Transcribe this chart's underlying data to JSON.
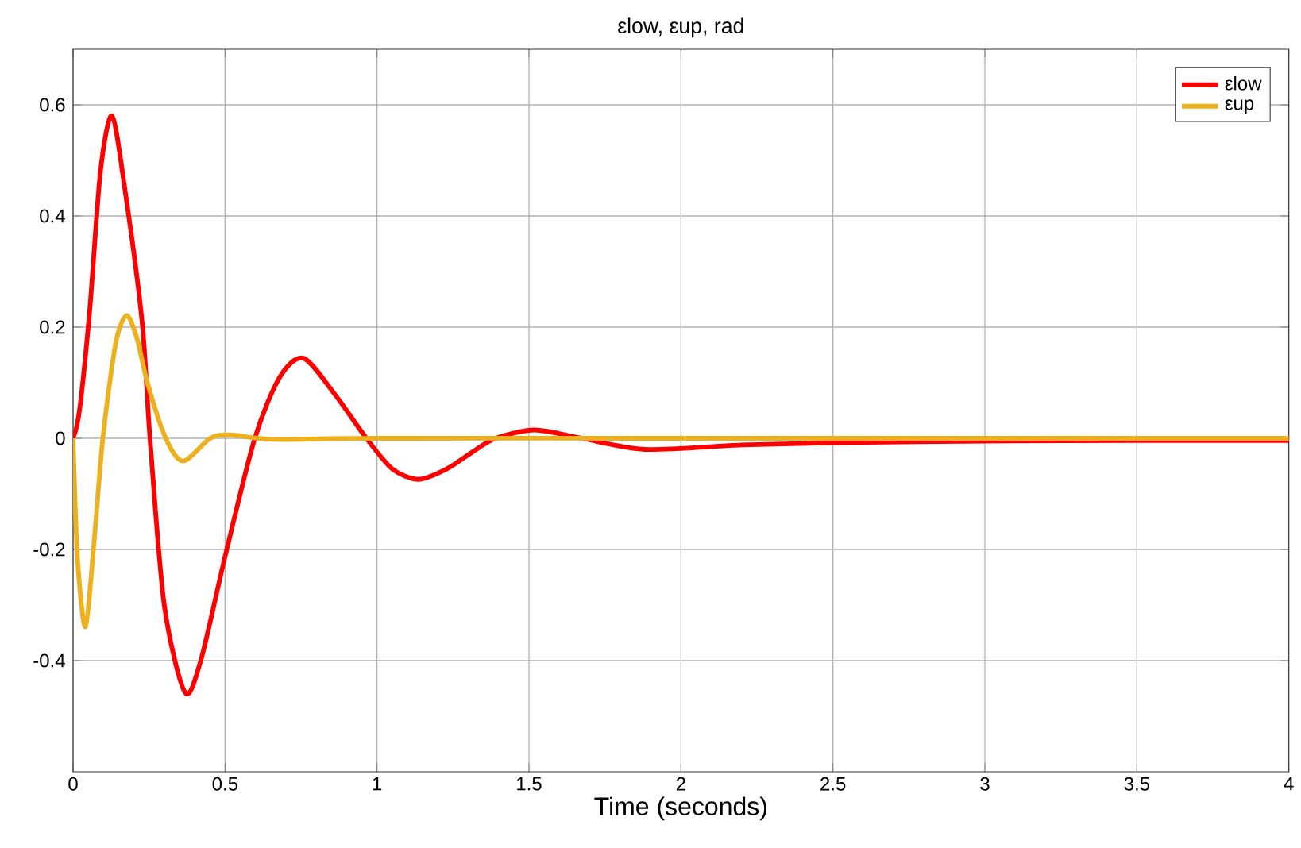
{
  "chart_data": {
    "type": "line",
    "title": "εlow, εup, rad",
    "xlabel": "Time (seconds)",
    "xlim": [
      0,
      4
    ],
    "ylim": [
      -0.6,
      0.7
    ],
    "xticks": [
      0,
      0.5,
      1,
      1.5,
      2,
      2.5,
      3,
      3.5,
      4
    ],
    "yticks": [
      -0.4,
      -0.2,
      0,
      0.2,
      0.4,
      0.6
    ],
    "grid": true,
    "legend": "top right",
    "line_style": "solid",
    "marker": "none",
    "series": [
      {
        "name": "εlow",
        "color": "#ff0000",
        "x": [
          0,
          0.021,
          0.055,
          0.09,
          0.128,
          0.17,
          0.227,
          0.253,
          0.3,
          0.368,
          0.42,
          0.503,
          0.598,
          0.68,
          0.758,
          0.86,
          0.965,
          1.05,
          1.137,
          1.23,
          1.313,
          1.39,
          1.519,
          1.674,
          1.88,
          2.2,
          2.5,
          3,
          3.5,
          4
        ],
        "values": [
          0,
          0.05,
          0.232,
          0.48,
          0.58,
          0.45,
          0.21,
          0,
          -0.3,
          -0.457,
          -0.4,
          -0.206,
          0,
          0.11,
          0.144,
          0.08,
          0,
          -0.055,
          -0.074,
          -0.055,
          -0.025,
          0,
          0.015,
          0,
          -0.02,
          -0.012,
          -0.008,
          -0.005,
          -0.004,
          -0.004
        ]
      },
      {
        "name": "εup",
        "color": "#edb120",
        "x": [
          0,
          0.015,
          0.041,
          0.07,
          0.098,
          0.14,
          0.176,
          0.21,
          0.245,
          0.305,
          0.362,
          0.451,
          0.517,
          0.658,
          1,
          2,
          3,
          4
        ],
        "values": [
          0,
          -0.22,
          -0.339,
          -0.18,
          0,
          0.17,
          0.221,
          0.18,
          0.099,
          0,
          -0.041,
          0,
          0.006,
          -0.002,
          0,
          0,
          0,
          0
        ]
      }
    ]
  }
}
